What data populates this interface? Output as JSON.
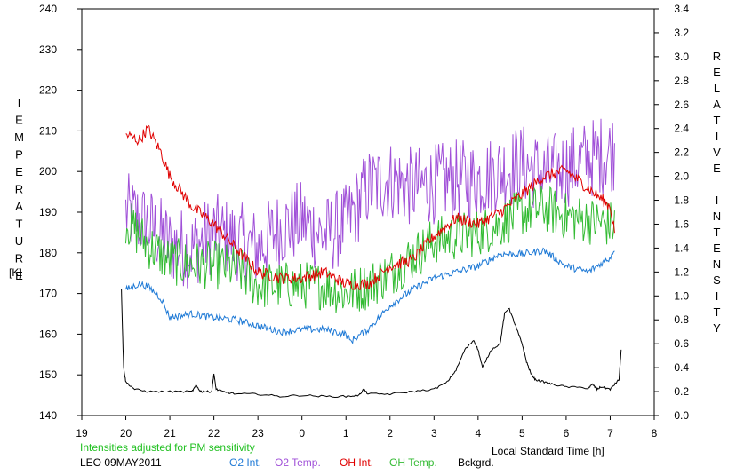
{
  "chart_data": {
    "type": "line",
    "left_axis_title": "TEMPERATURE",
    "left_axis_unit": "[K]",
    "right_axis_title": "RELATIVE INTENSITY",
    "xlabel": "Local Standard Time [h]",
    "xlim": [
      19,
      32
    ],
    "x_tick_labels": [
      "19",
      "20",
      "21",
      "22",
      "23",
      "0",
      "1",
      "2",
      "3",
      "4",
      "5",
      "6",
      "7",
      "8"
    ],
    "ylim_left": [
      140,
      240
    ],
    "y_left_ticks": [
      "140",
      "150",
      "160",
      "170",
      "180",
      "190",
      "200",
      "210",
      "220",
      "230",
      "240"
    ],
    "ylim_right": [
      0.0,
      3.4
    ],
    "y_right_ticks": [
      "0.0",
      "0.2",
      "0.4",
      "0.6",
      "0.8",
      "1.0",
      "1.2",
      "1.4",
      "1.6",
      "1.8",
      "2.0",
      "2.2",
      "2.4",
      "2.6",
      "2.8",
      "3.0",
      "3.2",
      "3.4"
    ],
    "note": "Intensities adjusted for PM sensitivity",
    "station_label": "LEO 09MAY2011",
    "legend": [
      {
        "label": "O2 Int.",
        "color": "#1f7ad6"
      },
      {
        "label": "O2 Temp.",
        "color": "#a050d8"
      },
      {
        "label": "OH Int.",
        "color": "#e00000"
      },
      {
        "label": "OH Temp.",
        "color": "#33bb33"
      },
      {
        "label": "Bckgrd.",
        "color": "#000000"
      }
    ],
    "series": [
      {
        "name": "O2 Temp.",
        "axis": "left",
        "color": "#a050d8",
        "noise": 10,
        "jitter": true,
        "x": [
          20.0,
          20.5,
          21.0,
          21.5,
          22.0,
          22.5,
          23.0,
          23.5,
          24.0,
          24.5,
          25.0,
          25.5,
          26.0,
          26.5,
          27.0,
          27.5,
          28.0,
          28.5,
          29.0,
          29.5,
          30.0,
          30.5,
          31.0,
          31.1
        ],
        "y": [
          190,
          187,
          182,
          181,
          185,
          183,
          181,
          186,
          188,
          184,
          187,
          196,
          198,
          196,
          197,
          198,
          198,
          200,
          202,
          199,
          201,
          203,
          205,
          205
        ]
      },
      {
        "name": "OH Temp.",
        "axis": "left",
        "color": "#33bb33",
        "noise": 6,
        "jitter": true,
        "x": [
          20.0,
          20.5,
          21.0,
          21.5,
          22.0,
          22.5,
          23.0,
          23.5,
          24.0,
          24.5,
          25.0,
          25.5,
          26.0,
          26.5,
          27.0,
          27.5,
          28.0,
          28.5,
          29.0,
          29.5,
          30.0,
          30.5,
          31.0,
          31.1
        ],
        "y": [
          188,
          182,
          178,
          177,
          177,
          176,
          172,
          172,
          172,
          172,
          170,
          172,
          175,
          179,
          183,
          184,
          185,
          187,
          190,
          191,
          189,
          188,
          187,
          187
        ]
      },
      {
        "name": "OH Int.",
        "axis": "right",
        "color": "#e00000",
        "noise": 0.05,
        "jitter": true,
        "x": [
          20.0,
          20.3,
          20.5,
          20.8,
          21.0,
          21.5,
          22.0,
          22.5,
          23.0,
          23.5,
          24.0,
          24.5,
          25.0,
          25.5,
          26.0,
          26.5,
          27.0,
          27.5,
          28.0,
          28.5,
          29.0,
          29.5,
          30.0,
          30.5,
          31.0,
          31.1
        ],
        "y": [
          2.35,
          2.3,
          2.4,
          2.2,
          2.0,
          1.75,
          1.6,
          1.4,
          1.2,
          1.15,
          1.15,
          1.2,
          1.1,
          1.1,
          1.25,
          1.3,
          1.5,
          1.65,
          1.6,
          1.7,
          1.85,
          2.0,
          2.05,
          1.9,
          1.75,
          1.55
        ]
      },
      {
        "name": "O2 Int.",
        "axis": "right",
        "color": "#1f7ad6",
        "noise": 0.03,
        "jitter": true,
        "x": [
          20.0,
          20.3,
          20.5,
          20.8,
          21.0,
          21.5,
          22.0,
          22.5,
          23.0,
          23.5,
          24.0,
          24.5,
          25.0,
          25.1,
          25.5,
          26.0,
          26.5,
          27.0,
          27.5,
          28.0,
          28.5,
          29.0,
          29.5,
          30.0,
          30.5,
          31.0,
          31.1
        ],
        "y": [
          1.05,
          1.1,
          1.08,
          0.98,
          0.82,
          0.85,
          0.82,
          0.8,
          0.75,
          0.7,
          0.72,
          0.72,
          0.68,
          0.62,
          0.72,
          0.92,
          1.05,
          1.15,
          1.2,
          1.25,
          1.35,
          1.35,
          1.38,
          1.25,
          1.2,
          1.32,
          1.4
        ]
      },
      {
        "name": "Bckgrd.",
        "axis": "right",
        "color": "#000000",
        "noise": 0.008,
        "jitter": false,
        "x": [
          19.9,
          19.95,
          20.0,
          20.2,
          20.5,
          21.0,
          21.5,
          21.6,
          21.7,
          21.8,
          21.95,
          22.0,
          22.05,
          22.2,
          22.5,
          23.0,
          23.5,
          24.0,
          24.5,
          25.0,
          25.3,
          25.4,
          25.5,
          26.0,
          26.5,
          27.0,
          27.3,
          27.5,
          27.7,
          27.9,
          28.0,
          28.1,
          28.3,
          28.5,
          28.6,
          28.7,
          28.8,
          28.9,
          29.0,
          29.1,
          29.2,
          29.3,
          29.5,
          29.7,
          30.0,
          30.5,
          30.6,
          30.7,
          30.8,
          31.0,
          31.1,
          31.2,
          31.25
        ],
        "y": [
          1.05,
          0.4,
          0.28,
          0.22,
          0.2,
          0.2,
          0.2,
          0.25,
          0.2,
          0.2,
          0.2,
          0.35,
          0.22,
          0.2,
          0.18,
          0.18,
          0.16,
          0.17,
          0.16,
          0.16,
          0.17,
          0.22,
          0.18,
          0.18,
          0.2,
          0.22,
          0.28,
          0.38,
          0.55,
          0.63,
          0.55,
          0.4,
          0.55,
          0.6,
          0.85,
          0.9,
          0.8,
          0.7,
          0.6,
          0.45,
          0.35,
          0.3,
          0.28,
          0.26,
          0.24,
          0.23,
          0.26,
          0.22,
          0.24,
          0.22,
          0.26,
          0.3,
          0.55
        ]
      }
    ]
  }
}
